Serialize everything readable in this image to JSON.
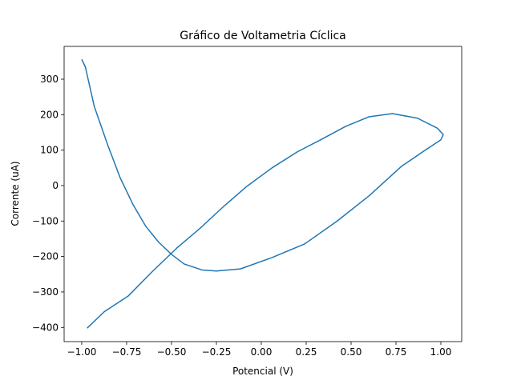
{
  "chart_data": {
    "type": "line",
    "title": "Gráfico de Voltametria Cíclica",
    "xlabel": "Potencial (V)",
    "ylabel": "Corrente (uA)",
    "series": [
      {
        "color": "#1f77b4",
        "x": [
          -1.0,
          -0.98,
          -0.93,
          -0.857,
          -0.786,
          -0.714,
          -0.643,
          -0.571,
          -0.5,
          -0.43,
          -0.33,
          -0.25,
          -0.116,
          0.06,
          0.24,
          0.42,
          0.6,
          0.78,
          0.91,
          1.0,
          1.013,
          0.98,
          0.87,
          0.73,
          0.6,
          0.47,
          0.33,
          0.2,
          0.06,
          -0.08,
          -0.21,
          -0.34,
          -0.47,
          -0.61,
          -0.74,
          -0.875,
          -0.97
        ],
        "values": [
          356,
          335,
          223,
          117,
          22,
          -54,
          -115,
          -160,
          -194,
          -221,
          -238,
          -241,
          -235,
          -203,
          -165,
          -101,
          -29,
          54,
          99,
          129,
          144,
          162,
          190,
          203,
          194,
          167,
          129,
          95,
          50,
          -2,
          -59,
          -120,
          -176,
          -244,
          -311,
          -356,
          -402
        ]
      }
    ],
    "xlim": [
      -1.098,
      1.116
    ],
    "ylim": [
      -440,
      392.5
    ],
    "xticks": [
      {
        "value": -1,
        "label": "−1.00"
      },
      {
        "value": -0.75,
        "label": "−0.75"
      },
      {
        "value": -0.5,
        "label": "−0.50"
      },
      {
        "value": -0.25,
        "label": "−0.25"
      },
      {
        "value": 0,
        "label": "0.00"
      },
      0.25,
      {
        "value": 0.5,
        "label": "0.50"
      },
      0.75,
      {
        "value": 1,
        "label": "1.00"
      }
    ],
    "yticks": [
      {
        "value": -400,
        "label": "−400"
      },
      {
        "value": -300,
        "label": "−300"
      },
      {
        "value": -200,
        "label": "−200"
      },
      {
        "value": -100,
        "label": "−100"
      },
      0,
      100,
      200,
      300
    ]
  }
}
